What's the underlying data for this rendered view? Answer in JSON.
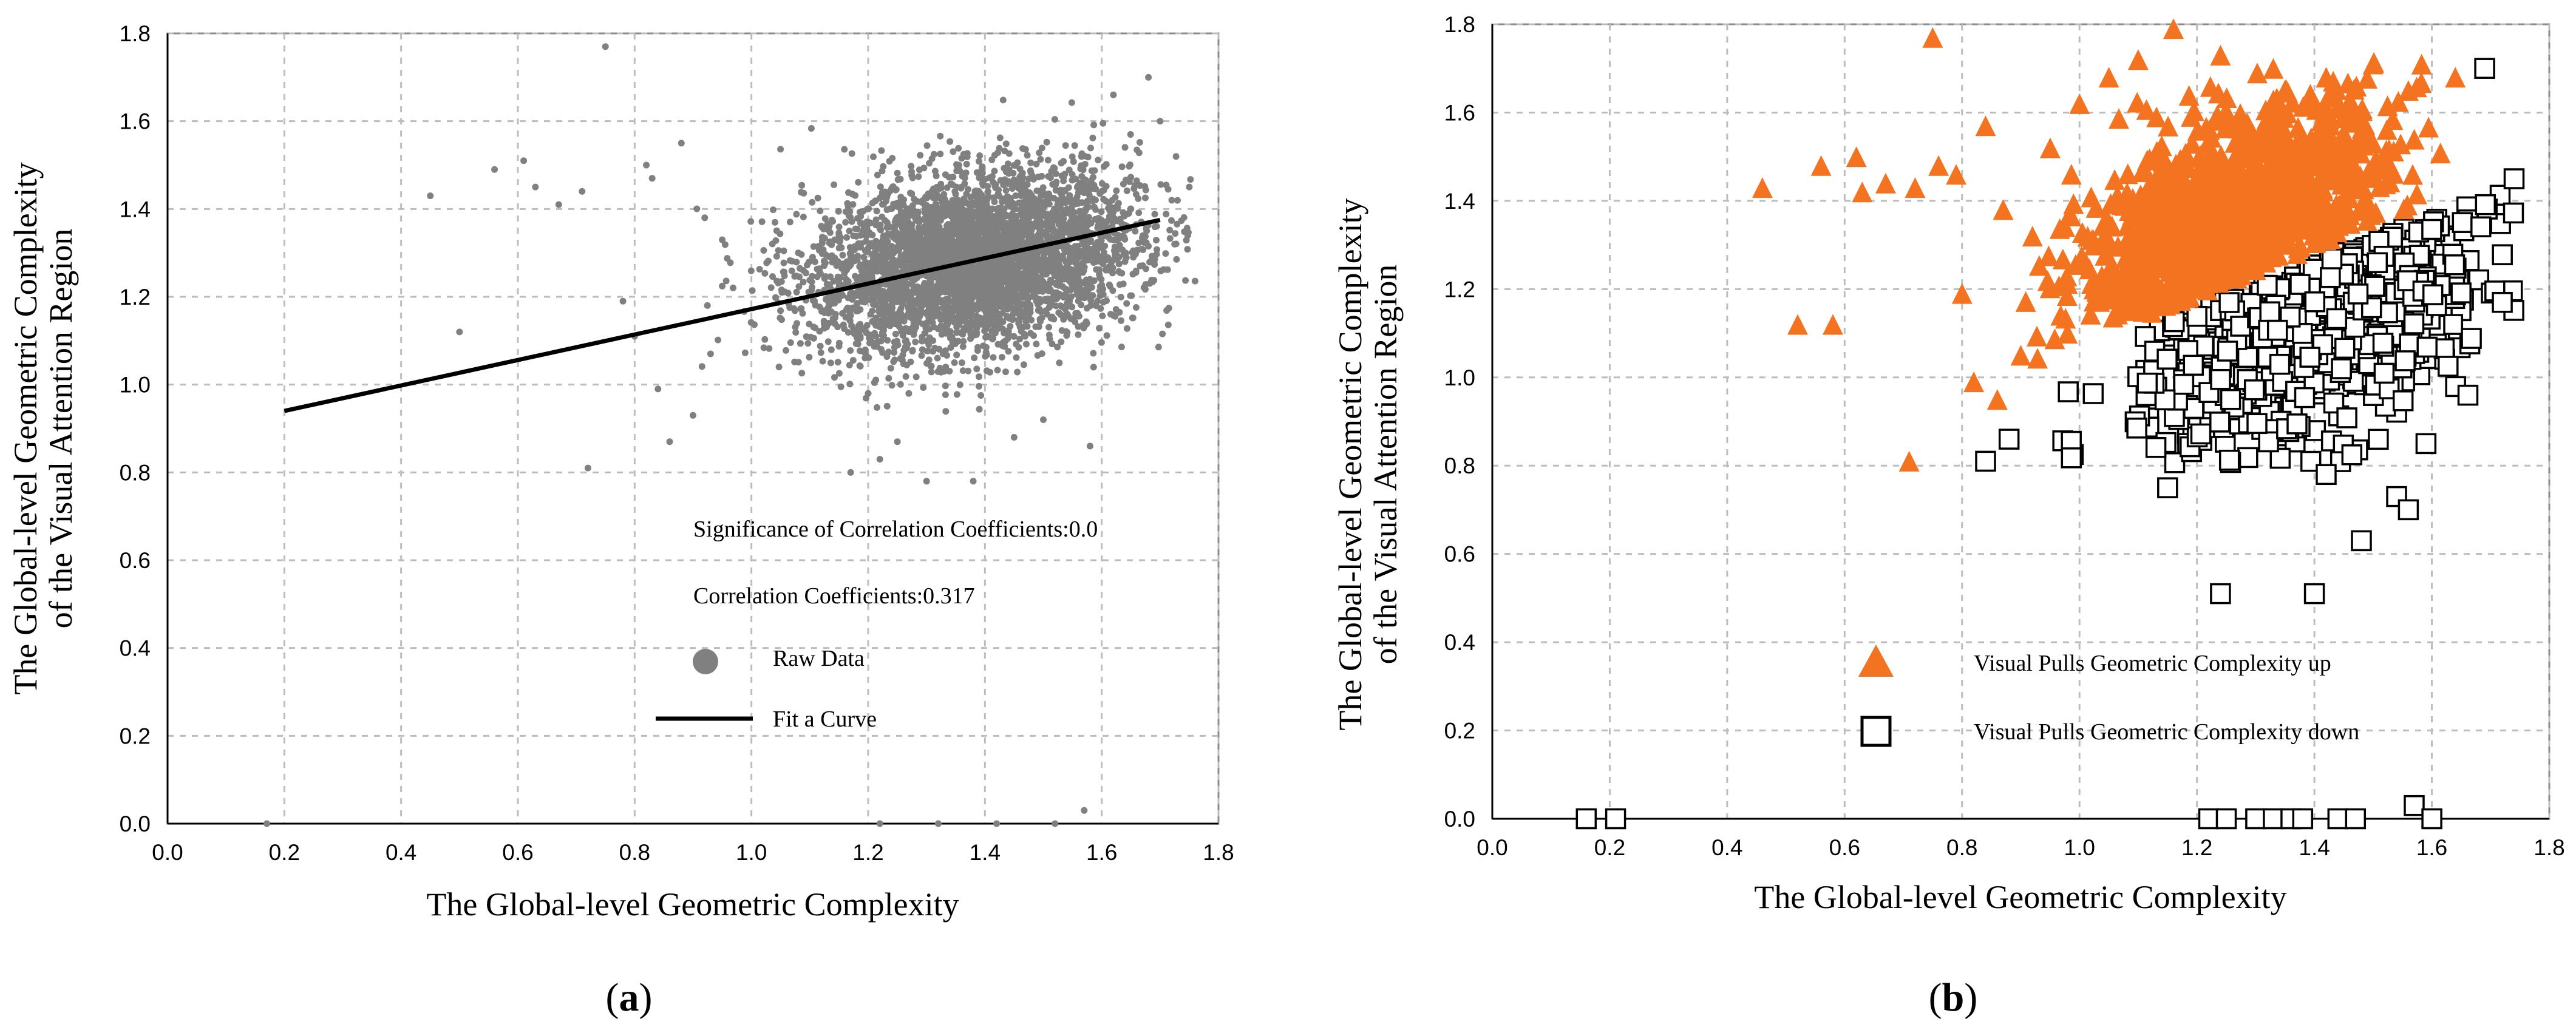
{
  "chart_data": [
    {
      "type": "scatter",
      "panel": "(a)",
      "panel_letter": "a",
      "title": "",
      "xlabel": "The Global-level Geometric Complexity",
      "ylabel_line1": "The Global-level Geometric Complexity",
      "ylabel_line2": "of the Visual Attention Region",
      "xlim": [
        0.0,
        1.8
      ],
      "ylim": [
        0.0,
        1.8
      ],
      "xticks": [
        "0.0",
        "0.2",
        "0.4",
        "0.6",
        "0.8",
        "1.0",
        "1.2",
        "1.4",
        "1.6",
        "1.8"
      ],
      "yticks": [
        "0.0",
        "0.2",
        "0.4",
        "0.6",
        "0.8",
        "1.0",
        "1.2",
        "1.4",
        "1.6",
        "1.8"
      ],
      "grid": true,
      "annotations": {
        "significance": "Significance of Correlation Coefficients:0.0",
        "correlation": "Correlation Coefficients:0.317"
      },
      "legend": {
        "raw": "Raw Data",
        "fit": "Fit a Curve"
      },
      "series": [
        {
          "name": "Raw Data",
          "kind": "points",
          "color": "#808080",
          "cluster": {
            "x_mean": 1.38,
            "y_mean": 1.28,
            "x_sd": 0.14,
            "y_sd": 0.1,
            "slope": 0.317,
            "count": 4200
          },
          "outliers": [
            [
              0.45,
              1.43
            ],
            [
              0.5,
              1.12
            ],
            [
              0.56,
              1.49
            ],
            [
              0.61,
              1.51
            ],
            [
              0.63,
              1.45
            ],
            [
              0.67,
              1.41
            ],
            [
              0.71,
              1.44
            ],
            [
              0.72,
              0.81
            ],
            [
              0.75,
              1.77
            ],
            [
              0.78,
              1.19
            ],
            [
              0.8,
              1.11
            ],
            [
              0.82,
              1.5
            ],
            [
              0.83,
              1.47
            ],
            [
              0.84,
              0.99
            ],
            [
              0.86,
              0.87
            ],
            [
              0.88,
              1.55
            ],
            [
              0.9,
              0.93
            ],
            [
              0.92,
              1.38
            ],
            [
              0.93,
              1.07
            ],
            [
              0.95,
              1.33
            ],
            [
              1.17,
              0.8
            ],
            [
              1.2,
              0.98
            ],
            [
              1.22,
              0.83
            ],
            [
              1.25,
              0.87
            ],
            [
              1.3,
              0.78
            ],
            [
              1.38,
              0.78
            ],
            [
              1.45,
              0.88
            ],
            [
              1.5,
              0.92
            ],
            [
              1.57,
              0.03
            ],
            [
              1.58,
              0.86
            ],
            [
              1.62,
              1.66
            ],
            [
              1.68,
              1.7
            ],
            [
              1.7,
              1.6
            ],
            [
              1.72,
              1.42
            ],
            [
              1.75,
              1.45
            ]
          ],
          "axis_points": [
            [
              0.17,
              0.0
            ],
            [
              1.22,
              0.0
            ],
            [
              1.32,
              0.0
            ],
            [
              1.42,
              0.0
            ],
            [
              1.52,
              0.0
            ]
          ]
        },
        {
          "name": "Fit a Curve",
          "kind": "line",
          "color": "#000000",
          "x": [
            0.2,
            1.7
          ],
          "y": [
            0.94,
            1.375
          ]
        }
      ]
    },
    {
      "type": "scatter",
      "panel": "(b)",
      "panel_letter": "b",
      "title": "",
      "xlabel": "The Global-level Geometric Complexity",
      "ylabel_line1": "The Global-level Geometric Complexity",
      "ylabel_line2": "of the Visual Attention Region",
      "xlim": [
        0.0,
        1.8
      ],
      "ylim": [
        0.0,
        1.8
      ],
      "xticks": [
        "0.0",
        "0.2",
        "0.4",
        "0.6",
        "0.8",
        "1.0",
        "1.2",
        "1.4",
        "1.6",
        "1.8"
      ],
      "yticks": [
        "0.0",
        "0.2",
        "0.4",
        "0.6",
        "0.8",
        "1.0",
        "1.2",
        "1.4",
        "1.6",
        "1.8"
      ],
      "grid": true,
      "legend": {
        "up": "Visual Pulls Geometric Complexity up",
        "down": "Visual Pulls Geometric Complexity down"
      },
      "series": [
        {
          "name": "Visual Pulls Geometric Complexity up",
          "kind": "triangles",
          "color": "#f47320",
          "boundary": "y > 0.317*(x-1) + 1.06 + 0.22*(x-1)",
          "cluster": {
            "x_mean": 1.26,
            "y_mean": 1.34,
            "x_sd": 0.13,
            "y_sd": 0.12,
            "count": 1100
          },
          "outliers": [
            [
              0.46,
              1.43
            ],
            [
              0.52,
              1.12
            ],
            [
              0.56,
              1.48
            ],
            [
              0.58,
              1.12
            ],
            [
              0.62,
              1.5
            ],
            [
              0.63,
              1.42
            ],
            [
              0.67,
              1.44
            ],
            [
              0.71,
              0.81
            ],
            [
              0.72,
              1.43
            ],
            [
              0.75,
              1.77
            ],
            [
              0.76,
              1.48
            ],
            [
              0.79,
              1.46
            ],
            [
              0.8,
              1.19
            ],
            [
              0.82,
              0.99
            ],
            [
              0.84,
              1.57
            ],
            [
              0.86,
              0.95
            ],
            [
              0.87,
              1.38
            ],
            [
              0.9,
              1.05
            ],
            [
              0.92,
              1.32
            ],
            [
              0.95,
              1.52
            ],
            [
              1.0,
              1.62
            ],
            [
              1.05,
              1.68
            ],
            [
              1.1,
              1.72
            ],
            [
              1.16,
              1.79
            ],
            [
              1.24,
              1.73
            ],
            [
              1.33,
              1.7
            ],
            [
              1.42,
              1.68
            ],
            [
              1.5,
              1.71
            ],
            [
              1.56,
              1.65
            ],
            [
              1.64,
              1.68
            ]
          ]
        },
        {
          "name": "Visual Pulls Geometric Complexity down",
          "kind": "squares",
          "color": "#000000",
          "cluster": {
            "x_mean": 1.4,
            "y_mean": 1.16,
            "x_sd": 0.15,
            "y_sd": 0.15,
            "count": 700
          },
          "outliers": [
            [
              0.16,
              0.0
            ],
            [
              0.21,
              0.0
            ],
            [
              0.84,
              0.81
            ],
            [
              0.88,
              0.86
            ],
            [
              1.15,
              0.75
            ],
            [
              1.24,
              0.51
            ],
            [
              1.22,
              0.0
            ],
            [
              1.25,
              0.0
            ],
            [
              1.3,
              0.0
            ],
            [
              1.33,
              0.0
            ],
            [
              1.36,
              0.0
            ],
            [
              1.38,
              0.0
            ],
            [
              1.44,
              0.0
            ],
            [
              1.47,
              0.0
            ],
            [
              1.48,
              0.63
            ],
            [
              1.4,
              0.51
            ],
            [
              1.42,
              0.78
            ],
            [
              1.54,
              0.73
            ],
            [
              1.56,
              0.7
            ],
            [
              1.57,
              0.03
            ],
            [
              1.59,
              0.85
            ],
            [
              1.6,
              0.0
            ],
            [
              1.69,
              1.7
            ],
            [
              1.72,
              1.17
            ],
            [
              1.74,
              1.45
            ]
          ]
        }
      ]
    }
  ]
}
